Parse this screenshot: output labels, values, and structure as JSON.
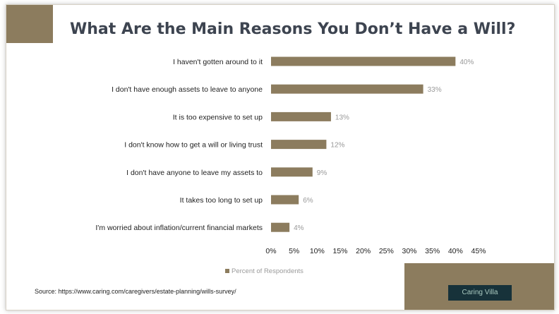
{
  "title": "What Are the Main Reasons You Don’t Have a Will?",
  "legend_label": "Percent of Respondents",
  "source": "Source: https://www.caring.com/caregivers/estate-planning/wills-survey/",
  "logo_text": "Caring Villa",
  "colors": {
    "bar": "#8c7c5e",
    "accent_block": "#8c7c5e",
    "title": "#3d4450",
    "logo_bg": "#17323a"
  },
  "chart_data": {
    "type": "bar",
    "orientation": "horizontal",
    "title": "What Are the Main Reasons You Don’t Have a Will?",
    "categories": [
      "I haven't gotten around to it",
      "I don't have enough assets to leave to anyone",
      "It is too expensive to set up",
      "I don't know how to get a will or living trust",
      "I don't have anyone to leave my assets to",
      "It takes too long to set up",
      "I'm worried about inflation/current financial markets"
    ],
    "series": [
      {
        "name": "Percent of Respondents",
        "values": [
          40,
          33,
          13,
          12,
          9,
          6,
          4
        ]
      }
    ],
    "value_labels": [
      "40%",
      "33%",
      "13%",
      "12%",
      "9%",
      "6%",
      "4%"
    ],
    "xlim": [
      0,
      45
    ],
    "x_ticks": [
      "0%",
      "5%",
      "10%",
      "15%",
      "20%",
      "25%",
      "30%",
      "35%",
      "40%",
      "45%"
    ],
    "xlabel": "",
    "ylabel": "",
    "grid": false,
    "legend_position": "bottom"
  }
}
